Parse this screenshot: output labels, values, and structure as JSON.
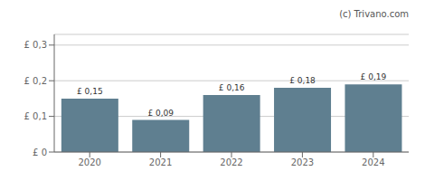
{
  "chart_data": {
    "type": "bar",
    "categories": [
      "2020",
      "2021",
      "2022",
      "2023",
      "2024"
    ],
    "values": [
      0.15,
      0.09,
      0.16,
      0.18,
      0.19
    ],
    "value_labels": [
      "£ 0,15",
      "£ 0,09",
      "£ 0,16",
      "£ 0,18",
      "£ 0,19"
    ],
    "data_labels": true,
    "color": "#5f7f90",
    "ylim": [
      0,
      0.33
    ],
    "yticks": [
      {
        "value": 0,
        "label": "£ 0"
      },
      {
        "value": 0.1,
        "label": "£ 0,1"
      },
      {
        "value": 0.2,
        "label": "£ 0,2"
      },
      {
        "value": 0.3,
        "label": "£ 0,3"
      }
    ],
    "grid": true,
    "annotations": [
      "(c) Trivano.com"
    ]
  }
}
